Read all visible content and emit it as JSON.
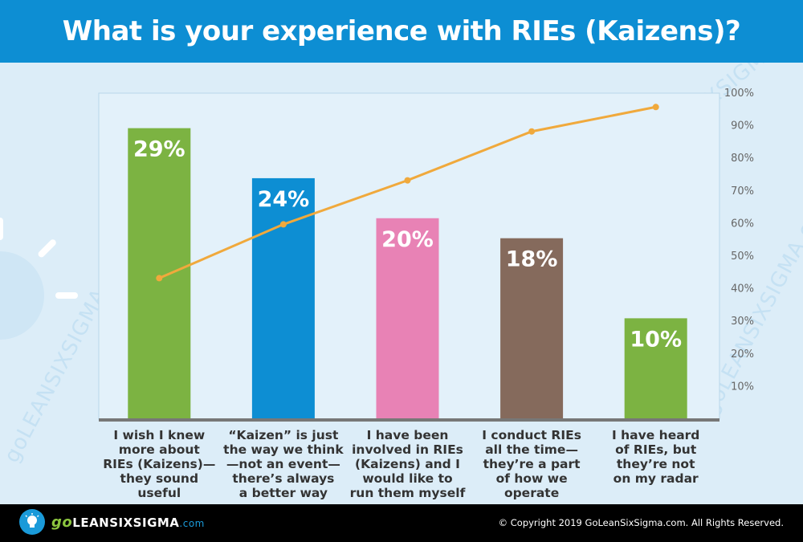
{
  "title": "What is your experience with RIEs (Kaizens)?",
  "chart_data": {
    "type": "bar",
    "categories": [
      [
        "I wish  I knew",
        "more about",
        "RIEs (Kaizens)—",
        "they sound",
        "useful"
      ],
      [
        "“Kaizen” is just",
        "the way we think",
        "—not an event—",
        "there’s always",
        "a better way"
      ],
      [
        "I have been",
        "involved in RIEs",
        "(Kaizens) and I",
        "would like to",
        "run them myself"
      ],
      [
        "I conduct RIEs",
        "all the time—",
        "they’re a part",
        "of how we",
        "operate"
      ],
      [
        "I have heard",
        "of RIEs, but",
        "they’re not",
        "on my radar"
      ]
    ],
    "values": [
      29,
      24,
      20,
      18,
      10
    ],
    "value_labels": [
      "29%",
      "24%",
      "20%",
      "18%",
      "10%"
    ],
    "bar_colors": [
      "#7cb342",
      "#0d8ed3",
      "#e882b5",
      "#856a5c",
      "#7cb342"
    ],
    "line": {
      "values": [
        43,
        59.5,
        73,
        88,
        95.5
      ],
      "color": "#f0a93c"
    },
    "y2_ticks": [
      "10%",
      "20%",
      "30%",
      "40%",
      "50%",
      "60%",
      "70%",
      "80%",
      "90%",
      "100%"
    ],
    "y2lim": [
      0,
      100
    ],
    "ylim": [
      0,
      32.5
    ]
  },
  "watermark": "goLEANSIXSIGMA.com",
  "footer": {
    "logo_go": "go",
    "logo_main": "LEANSIXSIGMA",
    "logo_com": ".com",
    "copyright": "© Copyright 2019 GoLeanSixSigma.com. All Rights Reserved."
  }
}
